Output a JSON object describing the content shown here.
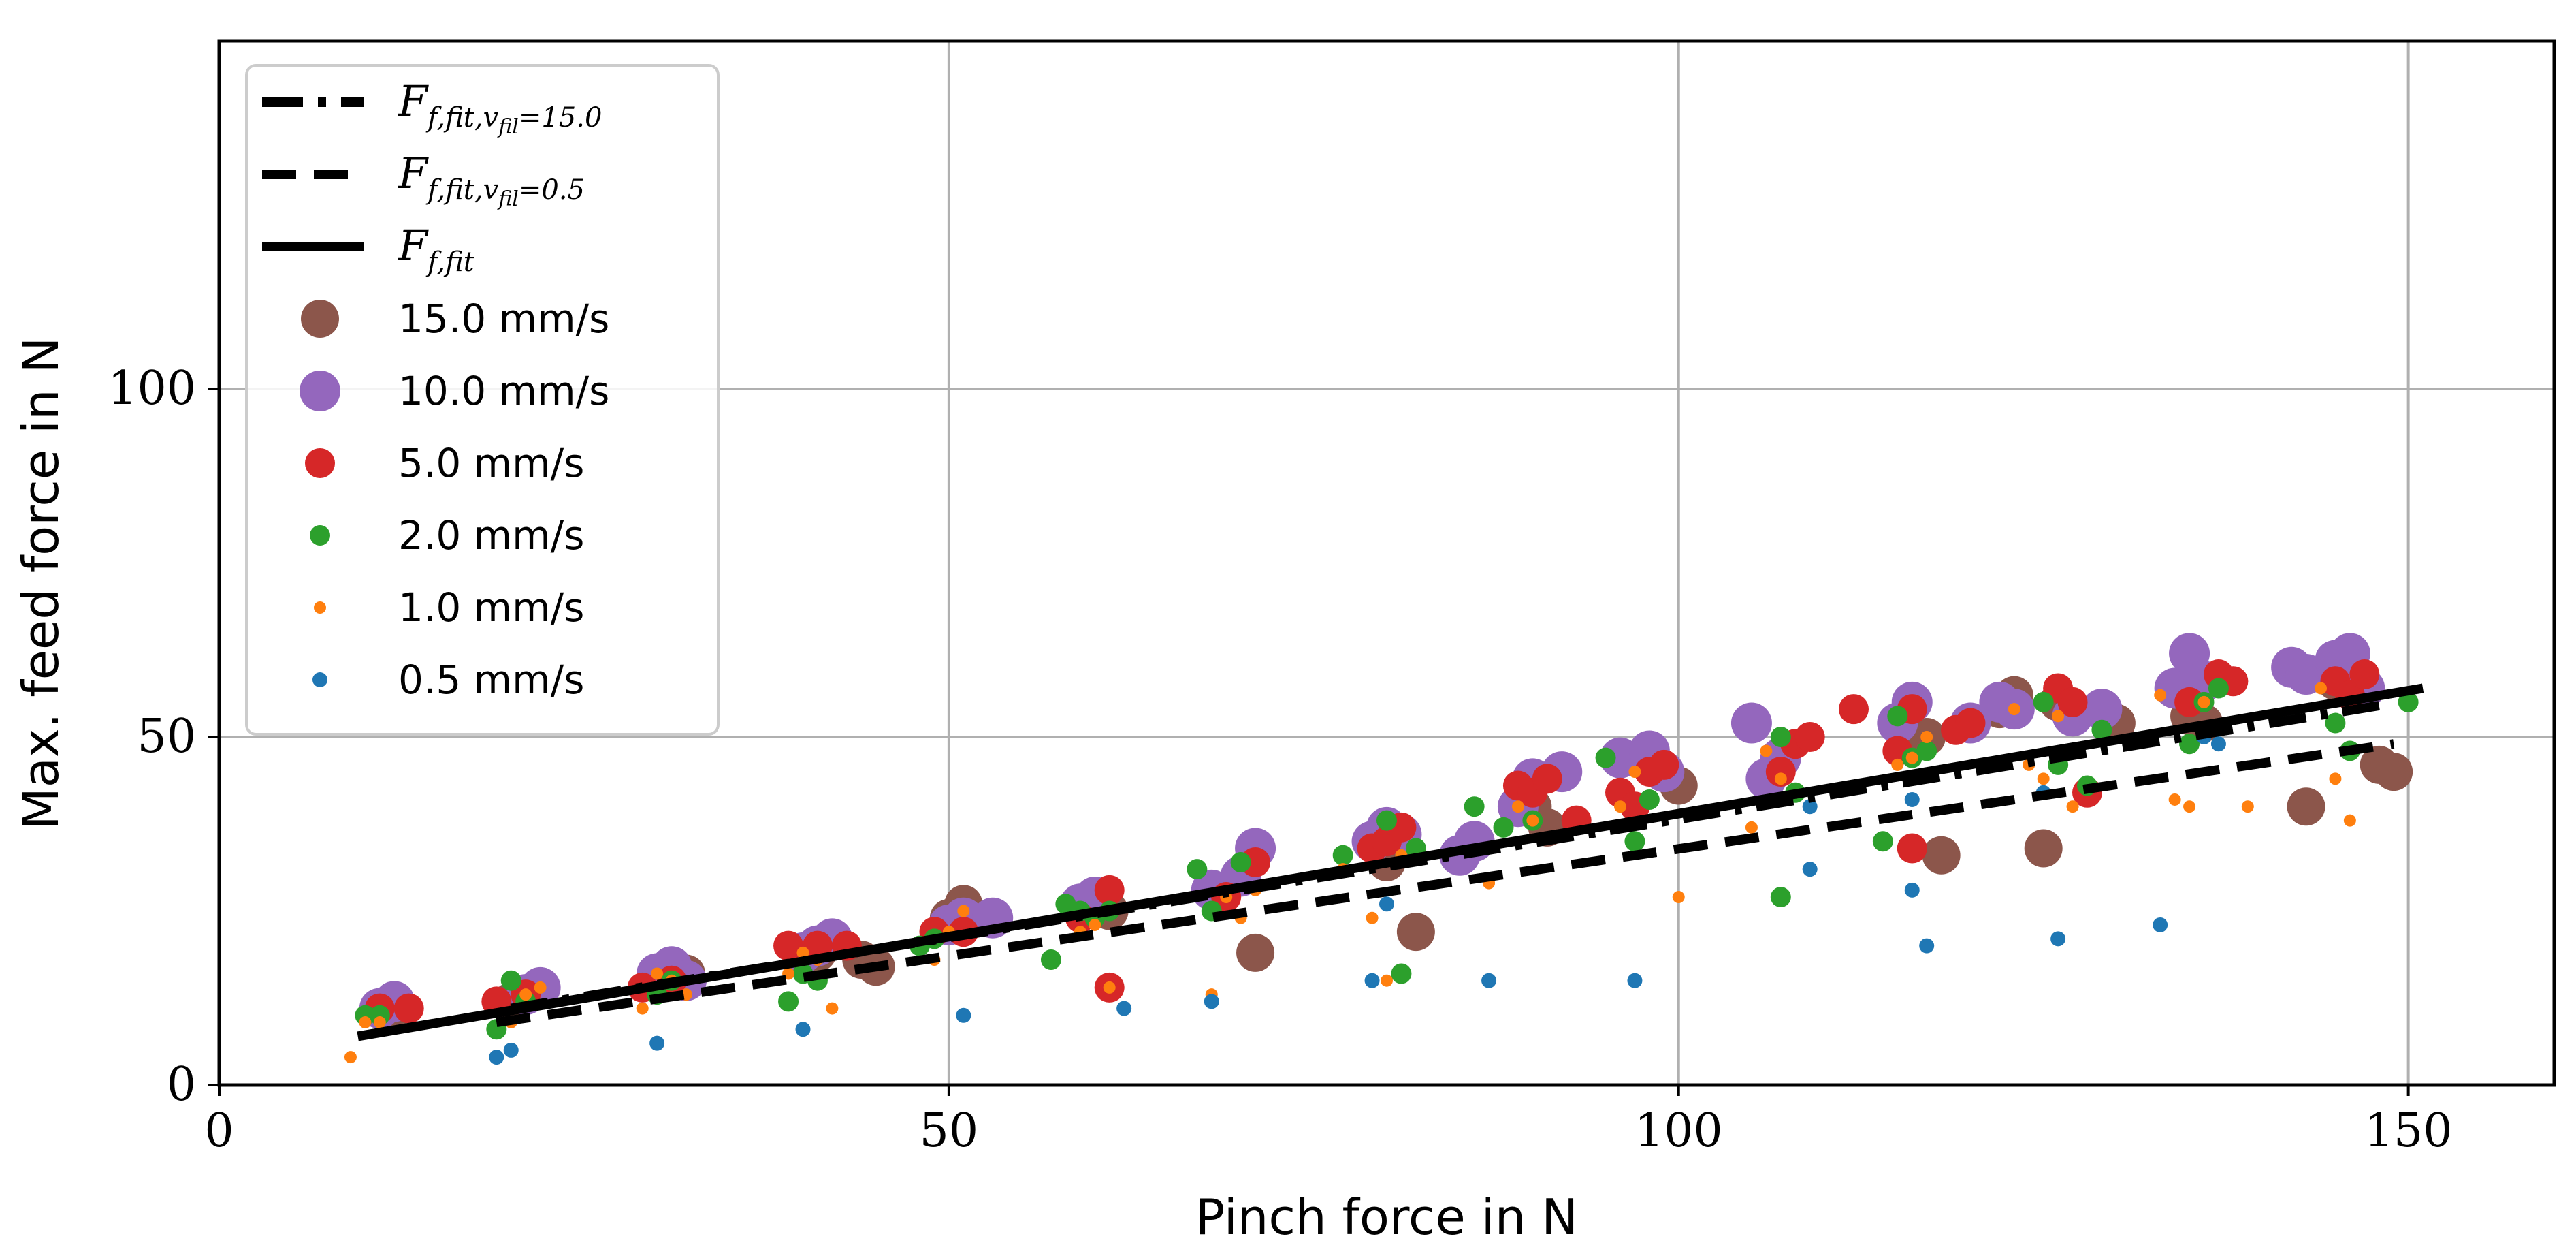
{
  "chart_data": {
    "type": "scatter",
    "xlabel": "Pinch force in N",
    "ylabel": "Max. feed force in N",
    "xlim": [
      0,
      160
    ],
    "ylim": [
      0,
      150
    ],
    "xticks": [
      0,
      50,
      100,
      150
    ],
    "yticks": [
      0,
      50,
      100
    ],
    "grid": true,
    "legend_position": "top-left",
    "fit_lines": [
      {
        "label_main": "F",
        "label_sub": "f,fit,v",
        "label_subsub": "fil",
        "label_tail": "=15.0",
        "style": "dashdot",
        "x": [
          20,
          148
        ],
        "y": [
          11,
          54.5
        ]
      },
      {
        "label_main": "F",
        "label_sub": "f,fit,v",
        "label_subsub": "fil",
        "label_tail": "=0.5",
        "style": "dashed",
        "x": [
          19,
          149
        ],
        "y": [
          9,
          49
        ]
      },
      {
        "label_main": "F",
        "label_sub": "f,fit",
        "label_subsub": "",
        "label_tail": "",
        "style": "solid",
        "x": [
          9.5,
          151
        ],
        "y": [
          7,
          57
        ]
      }
    ],
    "series": [
      {
        "name": "15.0 mm/s",
        "color": "#8c564b",
        "size": 28,
        "points": [
          [
            11,
            11
          ],
          [
            12,
            11
          ],
          [
            20,
            12
          ],
          [
            21,
            13
          ],
          [
            30,
            15
          ],
          [
            31,
            16
          ],
          [
            32,
            16
          ],
          [
            40,
            18
          ],
          [
            41,
            19
          ],
          [
            44,
            18
          ],
          [
            45,
            17
          ],
          [
            50,
            24
          ],
          [
            51,
            26
          ],
          [
            60,
            26
          ],
          [
            61,
            25
          ],
          [
            70,
            30
          ],
          [
            71,
            19
          ],
          [
            80,
            32
          ],
          [
            81,
            34
          ],
          [
            82,
            22
          ],
          [
            90,
            40
          ],
          [
            91,
            37
          ],
          [
            100,
            43
          ],
          [
            117,
            50
          ],
          [
            118,
            33
          ],
          [
            122,
            54
          ],
          [
            123,
            56
          ],
          [
            125,
            34
          ],
          [
            126,
            55
          ],
          [
            130,
            52
          ],
          [
            135,
            53
          ],
          [
            136,
            52
          ],
          [
            143,
            40
          ],
          [
            145,
            58
          ],
          [
            148,
            46
          ],
          [
            149,
            45
          ]
        ]
      },
      {
        "name": "10.0 mm/s",
        "color": "#9467bd",
        "size": 30,
        "points": [
          [
            11,
            11
          ],
          [
            12,
            12
          ],
          [
            21,
            13
          ],
          [
            22,
            14
          ],
          [
            30,
            16
          ],
          [
            31,
            17
          ],
          [
            32,
            15
          ],
          [
            40,
            19
          ],
          [
            41,
            20
          ],
          [
            42,
            21
          ],
          [
            50,
            23
          ],
          [
            51,
            24
          ],
          [
            53,
            24
          ],
          [
            59,
            26
          ],
          [
            60,
            27
          ],
          [
            68,
            28
          ],
          [
            70,
            30
          ],
          [
            71,
            34
          ],
          [
            79,
            35
          ],
          [
            80,
            37
          ],
          [
            81,
            36
          ],
          [
            85,
            33
          ],
          [
            86,
            35
          ],
          [
            89,
            40
          ],
          [
            90,
            44
          ],
          [
            92,
            45
          ],
          [
            96,
            47
          ],
          [
            98,
            48
          ],
          [
            99,
            45
          ],
          [
            105,
            52
          ],
          [
            106,
            44
          ],
          [
            107,
            47
          ],
          [
            115,
            52
          ],
          [
            116,
            55
          ],
          [
            120,
            52
          ],
          [
            122,
            55
          ],
          [
            123,
            54
          ],
          [
            127,
            53
          ],
          [
            129,
            54
          ],
          [
            134,
            57
          ],
          [
            135,
            62
          ],
          [
            136,
            58
          ],
          [
            142,
            60
          ],
          [
            143,
            59
          ],
          [
            145,
            61
          ],
          [
            146,
            62
          ],
          [
            147,
            57
          ]
        ]
      },
      {
        "name": "5.0 mm/s",
        "color": "#d62728",
        "size": 22,
        "points": [
          [
            11,
            11
          ],
          [
            13,
            11
          ],
          [
            19,
            12
          ],
          [
            21,
            13
          ],
          [
            29,
            14
          ],
          [
            31,
            15
          ],
          [
            39,
            20
          ],
          [
            41,
            20
          ],
          [
            43,
            20
          ],
          [
            49,
            22
          ],
          [
            51,
            22
          ],
          [
            59,
            24
          ],
          [
            61,
            28
          ],
          [
            61,
            14
          ],
          [
            69,
            27
          ],
          [
            71,
            32
          ],
          [
            79,
            34
          ],
          [
            80,
            35
          ],
          [
            81,
            37
          ],
          [
            89,
            43
          ],
          [
            90,
            42
          ],
          [
            91,
            44
          ],
          [
            93,
            38
          ],
          [
            96,
            42
          ],
          [
            97,
            40
          ],
          [
            98,
            45
          ],
          [
            99,
            46
          ],
          [
            107,
            45
          ],
          [
            108,
            49
          ],
          [
            109,
            50
          ],
          [
            112,
            54
          ],
          [
            115,
            48
          ],
          [
            116,
            54
          ],
          [
            116,
            34
          ],
          [
            119,
            51
          ],
          [
            120,
            52
          ],
          [
            126,
            57
          ],
          [
            127,
            55
          ],
          [
            128,
            42
          ],
          [
            135,
            55
          ],
          [
            137,
            59
          ],
          [
            138,
            58
          ],
          [
            145,
            58
          ],
          [
            146,
            56
          ],
          [
            147,
            59
          ]
        ]
      },
      {
        "name": "2.0 mm/s",
        "color": "#2ca02c",
        "size": 15,
        "points": [
          [
            10,
            10
          ],
          [
            11,
            10
          ],
          [
            19,
            8
          ],
          [
            20,
            15
          ],
          [
            21,
            12
          ],
          [
            30,
            13
          ],
          [
            31,
            15
          ],
          [
            39,
            12
          ],
          [
            40,
            16
          ],
          [
            41,
            15
          ],
          [
            48,
            20
          ],
          [
            49,
            21
          ],
          [
            57,
            18
          ],
          [
            58,
            26
          ],
          [
            59,
            25
          ],
          [
            60,
            24
          ],
          [
            61,
            25
          ],
          [
            67,
            31
          ],
          [
            68,
            25
          ],
          [
            70,
            32
          ],
          [
            77,
            33
          ],
          [
            80,
            38
          ],
          [
            81,
            16
          ],
          [
            82,
            34
          ],
          [
            86,
            40
          ],
          [
            88,
            37
          ],
          [
            90,
            38
          ],
          [
            95,
            47
          ],
          [
            97,
            35
          ],
          [
            98,
            41
          ],
          [
            107,
            50
          ],
          [
            107,
            27
          ],
          [
            108,
            42
          ],
          [
            114,
            35
          ],
          [
            115,
            53
          ],
          [
            116,
            47
          ],
          [
            117,
            48
          ],
          [
            125,
            55
          ],
          [
            126,
            46
          ],
          [
            128,
            43
          ],
          [
            129,
            51
          ],
          [
            135,
            49
          ],
          [
            136,
            55
          ],
          [
            137,
            57
          ],
          [
            145,
            52
          ],
          [
            146,
            48
          ],
          [
            150,
            55
          ]
        ]
      },
      {
        "name": "1.0 mm/s",
        "color": "#ff7f0e",
        "size": 9,
        "points": [
          [
            9,
            4
          ],
          [
            10,
            9
          ],
          [
            11,
            9
          ],
          [
            20,
            9
          ],
          [
            21,
            13
          ],
          [
            22,
            14
          ],
          [
            29,
            11
          ],
          [
            30,
            16
          ],
          [
            31,
            15
          ],
          [
            32,
            13
          ],
          [
            39,
            16
          ],
          [
            40,
            19
          ],
          [
            41,
            18
          ],
          [
            42,
            11
          ],
          [
            49,
            18
          ],
          [
            50,
            22
          ],
          [
            51,
            25
          ],
          [
            59,
            22
          ],
          [
            60,
            23
          ],
          [
            61,
            14
          ],
          [
            68,
            13
          ],
          [
            69,
            27
          ],
          [
            70,
            24
          ],
          [
            71,
            28
          ],
          [
            77,
            31
          ],
          [
            79,
            24
          ],
          [
            80,
            15
          ],
          [
            81,
            33
          ],
          [
            87,
            29
          ],
          [
            89,
            40
          ],
          [
            90,
            38
          ],
          [
            96,
            40
          ],
          [
            97,
            45
          ],
          [
            100,
            27
          ],
          [
            105,
            37
          ],
          [
            106,
            48
          ],
          [
            107,
            44
          ],
          [
            115,
            46
          ],
          [
            116,
            47
          ],
          [
            117,
            50
          ],
          [
            123,
            54
          ],
          [
            124,
            46
          ],
          [
            125,
            44
          ],
          [
            126,
            53
          ],
          [
            127,
            40
          ],
          [
            133,
            56
          ],
          [
            134,
            41
          ],
          [
            135,
            40
          ],
          [
            136,
            55
          ],
          [
            139,
            40
          ],
          [
            144,
            57
          ],
          [
            145,
            44
          ],
          [
            146,
            38
          ]
        ]
      },
      {
        "name": "0.5 mm/s",
        "color": "#1f77b4",
        "size": 11,
        "points": [
          [
            19,
            4
          ],
          [
            20,
            5
          ],
          [
            30,
            6
          ],
          [
            40,
            8
          ],
          [
            51,
            10
          ],
          [
            62,
            11
          ],
          [
            68,
            12
          ],
          [
            79,
            15
          ],
          [
            80,
            26
          ],
          [
            87,
            15
          ],
          [
            97,
            15
          ],
          [
            109,
            31
          ],
          [
            116,
            28
          ],
          [
            117,
            20
          ],
          [
            126,
            21
          ],
          [
            133,
            23
          ],
          [
            109,
            40
          ],
          [
            116,
            41
          ],
          [
            125,
            42
          ],
          [
            136,
            50
          ],
          [
            137,
            49
          ]
        ]
      }
    ]
  }
}
